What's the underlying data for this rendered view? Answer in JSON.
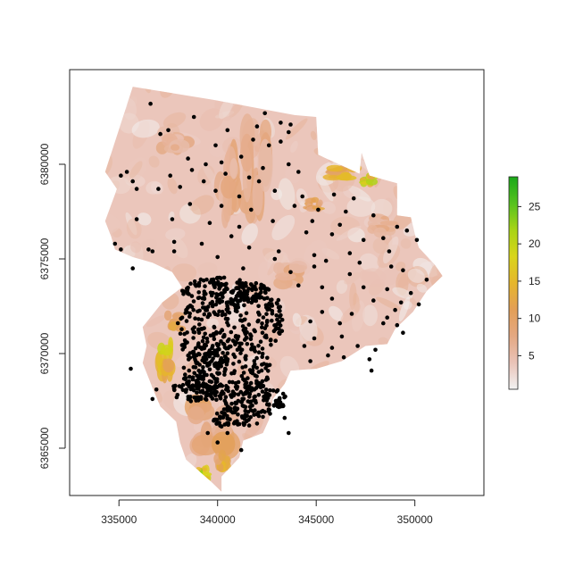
{
  "chart_data": {
    "type": "scatter",
    "title": "",
    "xlabel": "",
    "ylabel": "",
    "xlim": [
      332500,
      353500
    ],
    "ylim": [
      6362500,
      6385000
    ],
    "x_ticks": [
      335000,
      340000,
      345000,
      350000
    ],
    "x_tick_labels": [
      "335000",
      "340000",
      "345000",
      "350000"
    ],
    "y_ticks": [
      6365000,
      6370000,
      6375000,
      6380000
    ],
    "y_tick_labels": [
      "6365000",
      "6370000",
      "6375000",
      "6380000"
    ],
    "grid": false,
    "raster": {
      "description_colors": [
        "#f2f2f2",
        "#eac3b8",
        "#e4a882",
        "#e39f57",
        "#e9c419",
        "#a8d416",
        "#1aa81a"
      ],
      "region_outline": [
        [
          335700,
          6384100
        ],
        [
          339800,
          6383400
        ],
        [
          343900,
          6382600
        ],
        [
          345000,
          6382500
        ],
        [
          345100,
          6380500
        ],
        [
          347200,
          6379500
        ],
        [
          347300,
          6380600
        ],
        [
          347700,
          6379400
        ],
        [
          349100,
          6379000
        ],
        [
          349100,
          6377300
        ],
        [
          349800,
          6377200
        ],
        [
          350000,
          6376300
        ],
        [
          350200,
          6375600
        ],
        [
          351000,
          6374700
        ],
        [
          351400,
          6374100
        ],
        [
          350600,
          6373300
        ],
        [
          349900,
          6372200
        ],
        [
          349000,
          6371300
        ],
        [
          348600,
          6370500
        ],
        [
          347500,
          6370400
        ],
        [
          346300,
          6369600
        ],
        [
          345000,
          6369200
        ],
        [
          343700,
          6369100
        ],
        [
          343400,
          6368400
        ],
        [
          342800,
          6367600
        ],
        [
          342600,
          6366500
        ],
        [
          342300,
          6365800
        ],
        [
          341300,
          6365400
        ],
        [
          341100,
          6364500
        ],
        [
          340200,
          6363500
        ],
        [
          340200,
          6362700
        ],
        [
          339600,
          6363300
        ],
        [
          338400,
          6364400
        ],
        [
          338100,
          6365300
        ],
        [
          337900,
          6366400
        ],
        [
          337100,
          6367200
        ],
        [
          336700,
          6368200
        ],
        [
          336200,
          6369500
        ],
        [
          336400,
          6370400
        ],
        [
          336200,
          6371400
        ],
        [
          337200,
          6372700
        ],
        [
          338200,
          6373500
        ],
        [
          337700,
          6374300
        ],
        [
          336700,
          6374800
        ],
        [
          335700,
          6375100
        ],
        [
          334800,
          6375500
        ],
        [
          334600,
          6376200
        ],
        [
          334300,
          6377000
        ],
        [
          334900,
          6378700
        ],
        [
          334300,
          6379600
        ],
        [
          334800,
          6381200
        ],
        [
          335300,
          6382800
        ]
      ],
      "hot_patches": [
        {
          "c": [
            346400,
            6379500
          ],
          "r": [
            900,
            500
          ],
          "v": 16
        },
        {
          "c": [
            347600,
            6379100
          ],
          "r": [
            500,
            400
          ],
          "v": 20
        },
        {
          "c": [
            344900,
            6377900
          ],
          "r": [
            500,
            400
          ],
          "v": 12
        },
        {
          "c": [
            337300,
            6369600
          ],
          "r": [
            500,
            1400
          ],
          "v": 18
        },
        {
          "c": [
            337800,
            6371700
          ],
          "r": [
            500,
            600
          ],
          "v": 14
        },
        {
          "c": [
            339700,
            6366200
          ],
          "r": [
            1200,
            1600
          ],
          "v": 10
        },
        {
          "c": [
            340300,
            6364200
          ],
          "r": [
            500,
            700
          ],
          "v": 14
        },
        {
          "c": [
            339300,
            6363600
          ],
          "r": [
            400,
            500
          ],
          "v": 22
        },
        {
          "c": [
            342000,
            6379800
          ],
          "r": [
            800,
            3000
          ],
          "v": 8
        },
        {
          "c": [
            340600,
            6378700
          ],
          "r": [
            700,
            2500
          ],
          "v": 8
        },
        {
          "c": [
            343600,
            6374100
          ],
          "r": [
            900,
            700
          ],
          "v": 8
        },
        {
          "c": [
            337800,
            6381200
          ],
          "r": [
            900,
            800
          ],
          "v": 7
        },
        {
          "c": [
            348300,
            6376800
          ],
          "r": [
            800,
            600
          ],
          "v": 7
        }
      ]
    },
    "points": [
      [
        336600,
        6383200
      ],
      [
        337100,
        6381600
      ],
      [
        337500,
        6381800
      ],
      [
        338800,
        6382500
      ],
      [
        342400,
        6382700
      ],
      [
        343200,
        6382200
      ],
      [
        343700,
        6382100
      ],
      [
        343600,
        6381700
      ],
      [
        342000,
        6382000
      ],
      [
        340500,
        6381800
      ],
      [
        339900,
        6381000
      ],
      [
        341800,
        6381300
      ],
      [
        342600,
        6381000
      ],
      [
        343200,
        6381200
      ],
      [
        341200,
        6380400
      ],
      [
        338500,
        6380300
      ],
      [
        339400,
        6380000
      ],
      [
        340200,
        6380100
      ],
      [
        342300,
        6379800
      ],
      [
        343600,
        6380000
      ],
      [
        335400,
        6379600
      ],
      [
        335100,
        6379400
      ],
      [
        335700,
        6379100
      ],
      [
        337600,
        6379400
      ],
      [
        338700,
        6379700
      ],
      [
        339300,
        6379100
      ],
      [
        340400,
        6379500
      ],
      [
        341600,
        6379300
      ],
      [
        342100,
        6379100
      ],
      [
        344100,
        6379600
      ],
      [
        335900,
        6378700
      ],
      [
        337000,
        6378700
      ],
      [
        338100,
        6378800
      ],
      [
        339900,
        6378600
      ],
      [
        341100,
        6378300
      ],
      [
        342900,
        6378600
      ],
      [
        344300,
        6378300
      ],
      [
        345900,
        6378400
      ],
      [
        346900,
        6378200
      ],
      [
        338600,
        6377900
      ],
      [
        340200,
        6377800
      ],
      [
        341700,
        6377600
      ],
      [
        343900,
        6377800
      ],
      [
        345100,
        6377600
      ],
      [
        346500,
        6377500
      ],
      [
        347900,
        6377300
      ],
      [
        335900,
        6377100
      ],
      [
        337700,
        6377100
      ],
      [
        339600,
        6376900
      ],
      [
        341100,
        6376700
      ],
      [
        342800,
        6377000
      ],
      [
        344800,
        6377000
      ],
      [
        346200,
        6376800
      ],
      [
        349100,
        6376700
      ],
      [
        349600,
        6376500
      ],
      [
        340700,
        6376200
      ],
      [
        344500,
        6376400
      ],
      [
        345800,
        6376300
      ],
      [
        347400,
        6376000
      ],
      [
        348400,
        6376100
      ],
      [
        350100,
        6376000
      ],
      [
        334800,
        6375800
      ],
      [
        336500,
        6375500
      ],
      [
        337800,
        6375900
      ],
      [
        339200,
        6375800
      ],
      [
        341600,
        6375600
      ],
      [
        343100,
        6375400
      ],
      [
        344900,
        6375200
      ],
      [
        346700,
        6375300
      ],
      [
        348700,
        6375400
      ],
      [
        335100,
        6375500
      ],
      [
        336700,
        6375400
      ],
      [
        337800,
        6375400
      ],
      [
        340000,
        6375100
      ],
      [
        342900,
        6375000
      ],
      [
        345500,
        6374900
      ],
      [
        347200,
        6374800
      ],
      [
        348800,
        6374600
      ],
      [
        335700,
        6374500
      ],
      [
        341300,
        6374500
      ],
      [
        343700,
        6374300
      ],
      [
        344900,
        6374600
      ],
      [
        346700,
        6374200
      ],
      [
        349400,
        6374400
      ],
      [
        350600,
        6373900
      ],
      [
        344100,
        6373600
      ],
      [
        345300,
        6373500
      ],
      [
        347400,
        6373500
      ],
      [
        348600,
        6373400
      ],
      [
        349800,
        6373200
      ],
      [
        345800,
        6372900
      ],
      [
        347900,
        6372800
      ],
      [
        349300,
        6372700
      ],
      [
        350200,
        6372600
      ],
      [
        345300,
        6372200
      ],
      [
        346800,
        6372100
      ],
      [
        348600,
        6371900
      ],
      [
        349000,
        6372300
      ],
      [
        344700,
        6371700
      ],
      [
        346200,
        6371600
      ],
      [
        348400,
        6371600
      ],
      [
        349100,
        6371500
      ],
      [
        344900,
        6370800
      ],
      [
        346300,
        6370900
      ],
      [
        349400,
        6371100
      ],
      [
        344400,
        6370400
      ],
      [
        345800,
        6370300
      ],
      [
        347100,
        6370400
      ],
      [
        348000,
        6370200
      ],
      [
        345600,
        6369900
      ],
      [
        346400,
        6369800
      ],
      [
        347700,
        6369700
      ],
      [
        344700,
        6369600
      ],
      [
        347800,
        6369100
      ],
      [
        335600,
        6369200
      ],
      [
        336700,
        6367600
      ],
      [
        336900,
        6368100
      ],
      [
        343400,
        6366600
      ],
      [
        342000,
        6366300
      ],
      [
        341600,
        6366200
      ],
      [
        340500,
        6365800
      ],
      [
        339500,
        6365800
      ],
      [
        340000,
        6365300
      ],
      [
        343600,
        6365800
      ],
      [
        341200,
        6364900
      ]
    ],
    "dense_cluster": [
      {
        "center": [
          340300,
          6373300
        ],
        "radius": [
          2200,
          800
        ],
        "count": 140
      },
      {
        "center": [
          341800,
          6371900
        ],
        "radius": [
          1600,
          1800
        ],
        "count": 150
      },
      {
        "center": [
          339300,
          6371200
        ],
        "radius": [
          1400,
          1600
        ],
        "count": 110
      },
      {
        "center": [
          340400,
          6369200
        ],
        "radius": [
          2300,
          1500
        ],
        "count": 220
      },
      {
        "center": [
          339100,
          6368100
        ],
        "radius": [
          1500,
          700
        ],
        "count": 90
      },
      {
        "center": [
          341900,
          6367500
        ],
        "radius": [
          1600,
          900
        ],
        "count": 120
      },
      {
        "center": [
          340700,
          6366600
        ],
        "radius": [
          1000,
          600
        ],
        "count": 50
      }
    ],
    "legend": {
      "type": "colorbar",
      "ticks": [
        5,
        10,
        15,
        20,
        25
      ],
      "tick_labels": [
        "5",
        "10",
        "15",
        "20",
        "25"
      ],
      "range": [
        0.5,
        29
      ],
      "colors": [
        "#f2f2f2",
        "#eac3b8",
        "#e4a882",
        "#e39f57",
        "#e6b62c",
        "#d9d51a",
        "#a8d416",
        "#56c21e",
        "#1aa81a"
      ]
    }
  }
}
